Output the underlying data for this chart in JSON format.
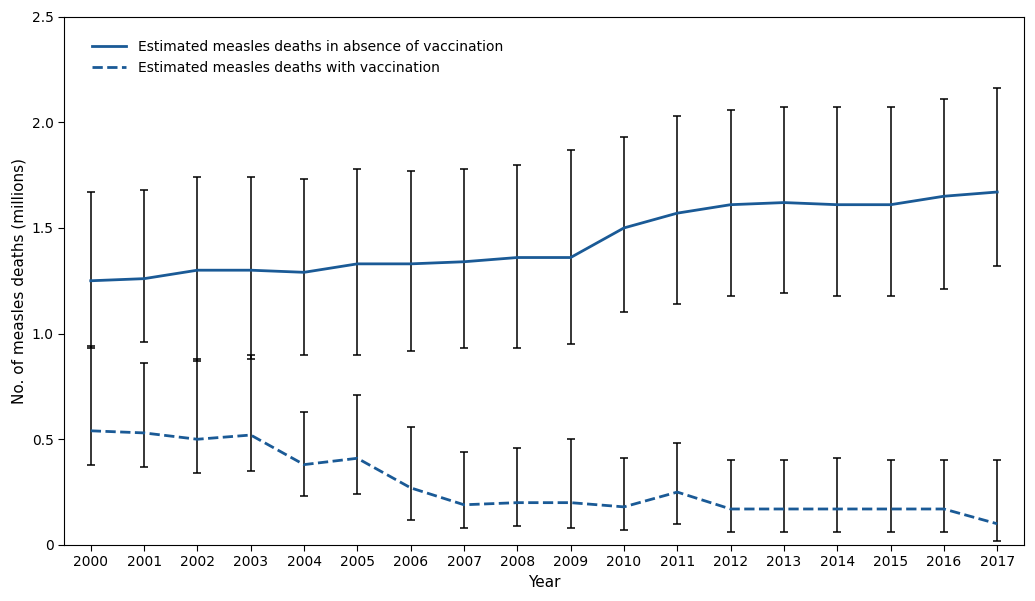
{
  "years": [
    2000,
    2001,
    2002,
    2003,
    2004,
    2005,
    2006,
    2007,
    2008,
    2009,
    2010,
    2011,
    2012,
    2013,
    2014,
    2015,
    2016,
    2017
  ],
  "no_vacc_y": [
    1.25,
    1.26,
    1.3,
    1.3,
    1.29,
    1.33,
    1.33,
    1.34,
    1.36,
    1.36,
    1.5,
    1.57,
    1.61,
    1.62,
    1.61,
    1.61,
    1.65,
    1.67
  ],
  "no_vacc_lo": [
    0.93,
    0.96,
    0.87,
    0.88,
    0.9,
    0.9,
    0.92,
    0.93,
    0.93,
    0.95,
    1.1,
    1.14,
    1.18,
    1.19,
    1.18,
    1.18,
    1.21,
    1.32
  ],
  "no_vacc_hi": [
    1.67,
    1.68,
    1.74,
    1.74,
    1.73,
    1.78,
    1.77,
    1.78,
    1.8,
    1.87,
    1.93,
    2.03,
    2.06,
    2.07,
    2.07,
    2.07,
    2.11,
    2.16
  ],
  "vacc_y": [
    0.54,
    0.53,
    0.5,
    0.52,
    0.38,
    0.41,
    0.27,
    0.19,
    0.2,
    0.2,
    0.18,
    0.25,
    0.17,
    0.17,
    0.17,
    0.17,
    0.17,
    0.1
  ],
  "vacc_lo": [
    0.38,
    0.37,
    0.34,
    0.35,
    0.23,
    0.24,
    0.12,
    0.08,
    0.09,
    0.08,
    0.07,
    0.1,
    0.06,
    0.06,
    0.06,
    0.06,
    0.06,
    0.02
  ],
  "vacc_hi": [
    0.94,
    0.86,
    0.88,
    0.9,
    0.63,
    0.71,
    0.56,
    0.44,
    0.46,
    0.5,
    0.41,
    0.48,
    0.4,
    0.4,
    0.41,
    0.4,
    0.4,
    0.4
  ],
  "line_color": "#1a5a96",
  "ylabel": "No. of measles deaths (millions)",
  "xlabel": "Year",
  "ylim": [
    0,
    2.5
  ],
  "yticks": [
    0,
    0.5,
    1.0,
    1.5,
    2.0,
    2.5
  ],
  "ytick_labels": [
    "0",
    "0.5",
    "1.0",
    "1.5",
    "2.0",
    "2.5"
  ],
  "legend_label_solid": "Estimated measles deaths in absence of vaccination",
  "legend_label_dashed": "Estimated measles deaths with vaccination",
  "errorbar_color": "black",
  "errorbar_capsize": 3,
  "errorbar_linewidth": 1.1,
  "line_linewidth": 2.0,
  "background_color": "#ffffff",
  "figure_border_color": "#aaaaaa"
}
